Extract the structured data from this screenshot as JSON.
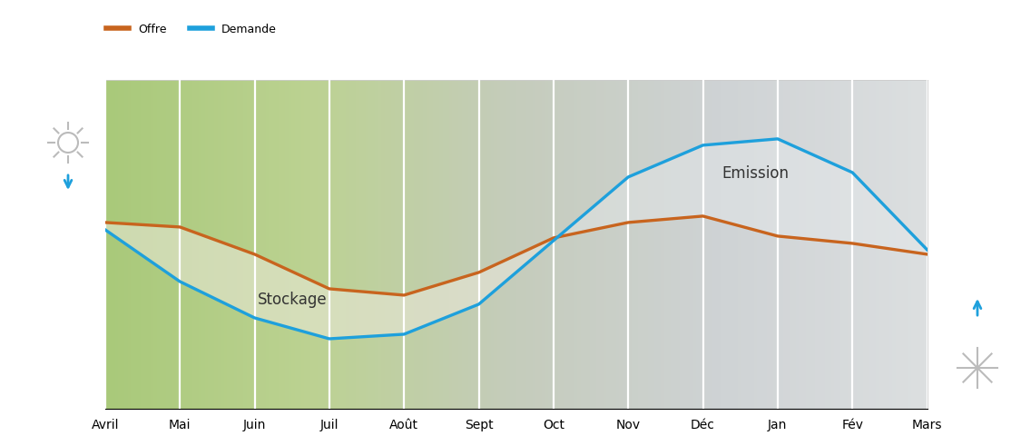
{
  "chart_data": {
    "type": "line",
    "categories": [
      "Avril",
      "Mai",
      "Juin",
      "Juil",
      "Août",
      "Sept",
      "Oct",
      "Nov",
      "Déc",
      "Jan",
      "Fév",
      "Mars"
    ],
    "series": [
      {
        "name": "Offre",
        "color": "#c8641e",
        "values": [
          205,
          200,
          170,
          132,
          125,
          150,
          188,
          205,
          212,
          190,
          182,
          170
        ]
      },
      {
        "name": "Demande",
        "color": "#1ea0dc",
        "values": [
          197,
          140,
          100,
          77,
          82,
          115,
          185,
          255,
          290,
          297,
          260,
          175
        ]
      }
    ],
    "ylim": [
      0,
      362
    ],
    "yticks": [],
    "annotations": [
      "Stockage",
      "Emission"
    ],
    "grid": true,
    "legend": "upper left",
    "tick_labels": "x"
  }
}
